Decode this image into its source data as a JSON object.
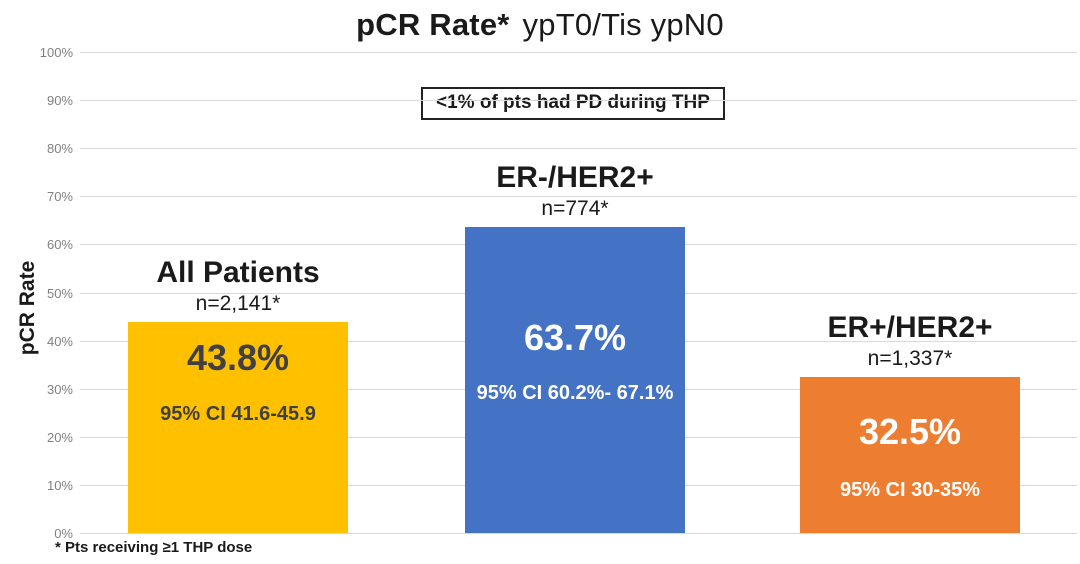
{
  "title": {
    "bold": "pCR Rate*",
    "rest": "ypT0/Tis ypN0"
  },
  "annotation": {
    "text": "<1% of pts had PD during THP"
  },
  "y_axis": {
    "label": "pCR Rate"
  },
  "footnote": {
    "text": "* Pts receiving ≥1 THP dose"
  },
  "colors": {
    "bar_gold": "#FFC000",
    "bar_blue": "#4472C4",
    "bar_orange": "#ED7D31",
    "in_bar_dark_text": "#404040",
    "in_bar_light_text": "#FFFFFF",
    "gridline": "#D9D9D9",
    "tick_text": "#808080"
  },
  "chart_data": {
    "type": "bar",
    "title": "pCR Rate* ypT0/Tis ypN0",
    "subtitle_annotation": "<1% of pts had PD during THP",
    "xlabel": "",
    "ylabel": "pCR Rate",
    "ylim": [
      0,
      100
    ],
    "ytick_step": 10,
    "yticks": [
      "0%",
      "10%",
      "20%",
      "30%",
      "40%",
      "50%",
      "60%",
      "70%",
      "80%",
      "90%",
      "100%"
    ],
    "grid": true,
    "legend": "none",
    "footnote": "* Pts receiving ≥1 THP dose",
    "categories": [
      "All Patients",
      "ER-/HER2+",
      "ER+/HER2+"
    ],
    "values": [
      43.8,
      63.7,
      32.5
    ],
    "bars": [
      {
        "category": "All Patients",
        "n_label": "n=2,141*",
        "value": 43.8,
        "value_label": "43.8%",
        "ci_label": "95% CI 41.6-45.9",
        "bar_color": "#FFC000",
        "text_color": "#404040"
      },
      {
        "category": "ER-/HER2+",
        "n_label": "n=774*",
        "value": 63.7,
        "value_label": "63.7%",
        "ci_label": "95% CI 60.2%- 67.1%",
        "bar_color": "#4472C4",
        "text_color": "#FFFFFF"
      },
      {
        "category": "ER+/HER2+",
        "n_label": "n=1,337*",
        "value": 32.5,
        "value_label": "32.5%",
        "ci_label": "95% CI 30-35%",
        "bar_color": "#ED7D31",
        "text_color": "#FFFFFF"
      }
    ]
  }
}
